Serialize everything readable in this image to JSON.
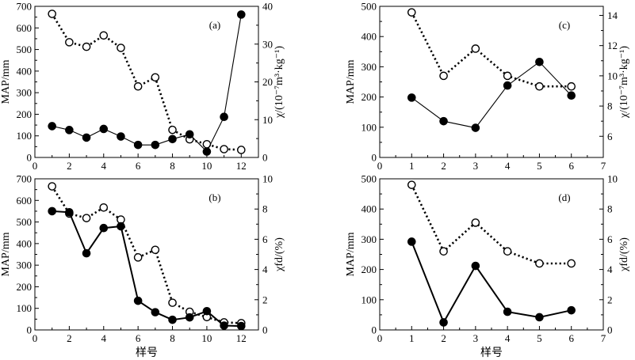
{
  "chart_data": [
    {
      "panel": "a",
      "label": "(a)",
      "type": "line",
      "ylabel_left": "MAP/mm",
      "ylabel_right": "χ/(10⁻⁷m³·kg⁻¹)",
      "xlim": [
        0,
        13
      ],
      "ylim_left": [
        0,
        700
      ],
      "ylim_right": [
        0,
        40
      ],
      "xticks": [
        0,
        2,
        4,
        6,
        8,
        10,
        12
      ],
      "xtick_labels": [
        "0",
        "2",
        "4",
        "6",
        "8",
        "10",
        "12"
      ],
      "yticks_left": [
        0,
        100,
        200,
        300,
        400,
        500,
        600,
        700
      ],
      "ytick_labels_left": [
        "0",
        "100",
        "200",
        "300",
        "400",
        "500",
        "600",
        "700"
      ],
      "yticks_right": [
        0,
        10,
        20,
        30,
        40
      ],
      "ytick_labels_right": [
        "0",
        "10",
        "20",
        "30",
        "40"
      ],
      "series": [
        {
          "name": "MAP",
          "axis": "left",
          "marker": "filled",
          "line": "solid",
          "x": [
            1,
            2,
            3,
            4,
            5,
            6,
            7,
            8,
            9,
            10,
            11,
            12
          ],
          "values": [
            145,
            127,
            92,
            132,
            97,
            58,
            58,
            85,
            107,
            27,
            188,
            662
          ]
        },
        {
          "name": "χ",
          "axis": "right",
          "marker": "open",
          "line": "dotted",
          "x": [
            1,
            2,
            3,
            4,
            5,
            6,
            7,
            8,
            9,
            10,
            11,
            12
          ],
          "values": [
            38,
            30.5,
            29.3,
            32.3,
            29,
            18.8,
            21.2,
            7.3,
            4.8,
            3.5,
            2.2,
            2
          ]
        }
      ]
    },
    {
      "panel": "b",
      "label": "(b)",
      "type": "line",
      "xlabel": "样号",
      "ylabel_left": "MAP/mm",
      "ylabel_right": "χfd/(%)",
      "xlim": [
        0,
        13
      ],
      "ylim_left": [
        0,
        700
      ],
      "ylim_right": [
        0,
        10
      ],
      "xticks": [
        0,
        2,
        4,
        6,
        8,
        10,
        12
      ],
      "xtick_labels": [
        "0",
        "2",
        "4",
        "6",
        "8",
        "10",
        "12"
      ],
      "yticks_left": [
        0,
        100,
        200,
        300,
        400,
        500,
        600,
        700
      ],
      "ytick_labels_left": [
        "0",
        "100",
        "200",
        "300",
        "400",
        "500",
        "600",
        "700"
      ],
      "yticks_right": [
        0,
        2,
        4,
        6,
        8,
        10
      ],
      "ytick_labels_right": [
        "0",
        "2",
        "4",
        "6",
        "8",
        "10"
      ],
      "series": [
        {
          "name": "MAP",
          "axis": "left",
          "marker": "filled",
          "line": "solid-bold",
          "x": [
            1,
            2,
            3,
            4,
            5,
            6,
            7,
            8,
            9,
            10,
            11,
            12
          ],
          "values": [
            550,
            545,
            355,
            472,
            480,
            135,
            82,
            47,
            58,
            87,
            20,
            18
          ]
        },
        {
          "name": "χfd",
          "axis": "right",
          "marker": "open",
          "line": "dotted",
          "x": [
            1,
            2,
            3,
            4,
            5,
            6,
            7,
            8,
            9,
            10,
            11,
            12
          ],
          "values": [
            9.5,
            7.7,
            7.4,
            8.1,
            7.3,
            4.8,
            5.3,
            1.8,
            1.2,
            0.85,
            0.5,
            0.45
          ]
        }
      ]
    },
    {
      "panel": "c",
      "label": "(c)",
      "type": "line",
      "ylabel_left": "MAP/mm",
      "ylabel_right": "χ/(10⁻⁷m³·kg⁻¹)",
      "xlim": [
        0,
        7
      ],
      "ylim_left": [
        0,
        500
      ],
      "ylim_right": [
        4.6,
        14.6
      ],
      "xticks": [
        0,
        1,
        2,
        3,
        4,
        5,
        6,
        7
      ],
      "xtick_labels": [
        "0",
        "1",
        "2",
        "3",
        "4",
        "5",
        "6",
        "7"
      ],
      "yticks_left": [
        0,
        100,
        200,
        300,
        400,
        500
      ],
      "ytick_labels_left": [
        "0",
        "100",
        "200",
        "300",
        "400",
        "500"
      ],
      "yticks_right": [
        6,
        8,
        10,
        12,
        14
      ],
      "ytick_labels_right": [
        "6",
        "8",
        "10",
        "12",
        "14"
      ],
      "series": [
        {
          "name": "MAP",
          "axis": "left",
          "marker": "filled",
          "line": "solid",
          "x": [
            1,
            2,
            3,
            4,
            5,
            6
          ],
          "values": [
            198,
            120,
            98,
            238,
            316,
            205
          ]
        },
        {
          "name": "χ",
          "axis": "right",
          "marker": "open",
          "line": "dotted",
          "x": [
            1,
            2,
            3,
            4,
            5,
            6
          ],
          "values": [
            14.2,
            10.0,
            11.8,
            10.0,
            9.3,
            9.3
          ]
        }
      ]
    },
    {
      "panel": "d",
      "label": "(d)",
      "type": "line",
      "xlabel": "样号",
      "ylabel_left": "MAP/mm",
      "ylabel_right": "χfd/(%)",
      "xlim": [
        0,
        7
      ],
      "ylim_left": [
        0,
        500
      ],
      "ylim_right": [
        0,
        10
      ],
      "xticks": [
        0,
        1,
        2,
        3,
        4,
        5,
        6,
        7
      ],
      "xtick_labels": [
        "0",
        "1",
        "2",
        "3",
        "4",
        "5",
        "6",
        "7"
      ],
      "yticks_left": [
        0,
        100,
        200,
        300,
        400,
        500
      ],
      "ytick_labels_left": [
        "0",
        "100",
        "200",
        "300",
        "400",
        "500"
      ],
      "yticks_right": [
        0,
        2,
        4,
        6,
        8,
        10
      ],
      "ytick_labels_right": [
        "0",
        "2",
        "4",
        "6",
        "8",
        "10"
      ],
      "series": [
        {
          "name": "MAP",
          "axis": "left",
          "marker": "filled",
          "line": "solid-bold",
          "x": [
            1,
            2,
            3,
            4,
            5,
            6
          ],
          "values": [
            292,
            25,
            212,
            60,
            42,
            65
          ]
        },
        {
          "name": "χfd",
          "axis": "right",
          "marker": "open",
          "line": "dotted",
          "x": [
            1,
            2,
            3,
            4,
            5,
            6
          ],
          "values": [
            9.6,
            5.2,
            7.1,
            5.2,
            4.4,
            4.4
          ]
        }
      ]
    }
  ]
}
